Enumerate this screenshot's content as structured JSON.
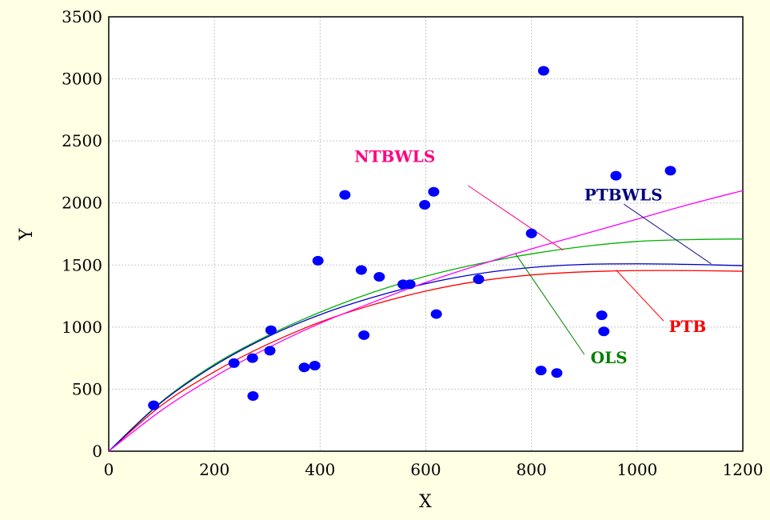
{
  "chart_data": {
    "type": "scatter",
    "xlabel": "X",
    "ylabel": "Y",
    "xlim": [
      0,
      1200
    ],
    "ylim": [
      0,
      3500
    ],
    "xticks": [
      0,
      200,
      400,
      600,
      800,
      1000,
      1200
    ],
    "yticks": [
      0,
      500,
      1000,
      1500,
      2000,
      2500,
      3000,
      3500
    ],
    "grid": true,
    "colors": {
      "background": "#FFFFE4",
      "plot_area": "#FFFFFF",
      "points": "#0000FF",
      "grid": "#C8C8C8"
    },
    "points": [
      {
        "x": 85,
        "y": 370
      },
      {
        "x": 237,
        "y": 710
      },
      {
        "x": 272,
        "y": 750
      },
      {
        "x": 273,
        "y": 445
      },
      {
        "x": 305,
        "y": 810
      },
      {
        "x": 307,
        "y": 975
      },
      {
        "x": 370,
        "y": 675
      },
      {
        "x": 390,
        "y": 690
      },
      {
        "x": 396,
        "y": 1535
      },
      {
        "x": 447,
        "y": 2065
      },
      {
        "x": 478,
        "y": 1460
      },
      {
        "x": 483,
        "y": 935
      },
      {
        "x": 512,
        "y": 1405
      },
      {
        "x": 557,
        "y": 1345
      },
      {
        "x": 570,
        "y": 1345
      },
      {
        "x": 598,
        "y": 1985
      },
      {
        "x": 615,
        "y": 2090
      },
      {
        "x": 620,
        "y": 1105
      },
      {
        "x": 700,
        "y": 1385
      },
      {
        "x": 800,
        "y": 1755
      },
      {
        "x": 818,
        "y": 650
      },
      {
        "x": 823,
        "y": 3065
      },
      {
        "x": 848,
        "y": 630
      },
      {
        "x": 933,
        "y": 1095
      },
      {
        "x": 937,
        "y": 965
      },
      {
        "x": 960,
        "y": 2220
      },
      {
        "x": 1063,
        "y": 2260
      }
    ],
    "series": [
      {
        "name": "PTB",
        "color": "#FF0000",
        "x": [
          0,
          100,
          200,
          300,
          400,
          500,
          600,
          700,
          800,
          900,
          1000,
          1100,
          1200
        ],
        "y": [
          0,
          370,
          640,
          860,
          1040,
          1180,
          1290,
          1370,
          1420,
          1445,
          1455,
          1455,
          1450
        ]
      },
      {
        "name": "OLS",
        "color": "#00B000",
        "x": [
          0,
          100,
          200,
          300,
          400,
          500,
          600,
          700,
          800,
          900,
          1000,
          1100,
          1200
        ],
        "y": [
          0,
          400,
          700,
          930,
          1120,
          1280,
          1410,
          1510,
          1590,
          1650,
          1690,
          1705,
          1710
        ]
      },
      {
        "name": "PTBWLS",
        "color": "#0000CC",
        "x": [
          0,
          100,
          200,
          300,
          400,
          500,
          600,
          700,
          800,
          900,
          1000,
          1100,
          1200
        ],
        "y": [
          0,
          395,
          690,
          920,
          1100,
          1240,
          1350,
          1430,
          1480,
          1505,
          1510,
          1505,
          1495
        ]
      },
      {
        "name": "NTBWLS",
        "color": "#FF00FF",
        "x": [
          0,
          100,
          200,
          300,
          400,
          500,
          600,
          700,
          800,
          900,
          1000,
          1100,
          1200
        ],
        "y": [
          0,
          330,
          600,
          830,
          1030,
          1200,
          1360,
          1500,
          1630,
          1750,
          1870,
          1990,
          2100
        ]
      }
    ],
    "annotations": [
      {
        "series": "NTBWLS",
        "text": "NTBWLS",
        "color": "#FF0080",
        "text_at": [
          465,
          2330
        ],
        "line_from": [
          680,
          2140
        ],
        "line_to": [
          860,
          1620
        ]
      },
      {
        "series": "PTBWLS",
        "text": "PTBWLS",
        "color": "#000080",
        "text_at": [
          900,
          2020
        ],
        "line_from": [
          975,
          1990
        ],
        "line_to": [
          1140,
          1510
        ]
      },
      {
        "series": "PTB",
        "text": "PTB",
        "color": "#FF0000",
        "text_at": [
          1060,
          960
        ],
        "line_from": [
          1050,
          1050
        ],
        "line_to": [
          960,
          1460
        ]
      },
      {
        "series": "OLS",
        "text": "OLS",
        "color": "#008000",
        "text_at": [
          912,
          710
        ],
        "line_from": [
          900,
          780
        ],
        "line_to": [
          770,
          1590
        ]
      }
    ]
  }
}
